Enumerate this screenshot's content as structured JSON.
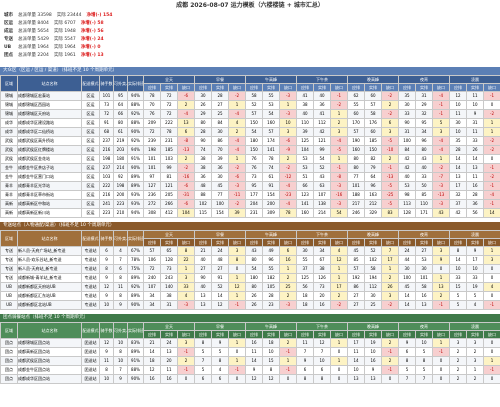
{
  "header": {
    "title": "成都 2026-08-07 运力模板（六楼楼链 + 城市汇总）"
  },
  "summary": [
    {
      "label": "城市",
      "items": [
        "总派单量 33598",
        "实际 23444",
        "净增(-) 154"
      ]
    },
    {
      "label": "区运",
      "items": [
        "总派单量 8404",
        "实际 6707",
        "净增(-) 58"
      ]
    },
    {
      "label": "成运",
      "items": [
        "总派单量 5654",
        "实际 1948",
        "净增(-) 56"
      ]
    },
    {
      "label": "专送",
      "items": [
        "总派单量 5429",
        "实际 5547",
        "净增(-) 24"
      ]
    },
    {
      "label": "UB",
      "items": [
        "总派单量 1964",
        "实际 1964",
        "净增(-) 0"
      ]
    },
    {
      "label": "团点",
      "items": [
        "总派单量 2204",
        "实际 1961",
        "净增(-) 13"
      ]
    }
  ],
  "columns": {
    "fixed": [
      "区域",
      "站点名称",
      "配送模式",
      "骑手数",
      "可外卖人数",
      "实际排班率"
    ],
    "groups": [
      "全天",
      "早餐",
      "午高峰",
      "下午茶",
      "晚高峰",
      "夜宵",
      "凌晨"
    ],
    "sub": [
      "应排",
      "实排",
      "缺口"
    ]
  },
  "sections": [
    {
      "title": "大众区（区运 / 区运 / 渠道）（排班不足 10 个周期单元）",
      "rows": [
        [
          "锦城",
          "成都锦城区宏泰站",
          "区运",
          101,
          95,
          "94%",
          78,
          72,
          -6,
          30,
          28,
          -2,
          58,
          55,
          -3,
          41,
          40,
          -1,
          62,
          60,
          -2,
          35,
          31,
          -4,
          12,
          11,
          -1
        ],
        [
          "锦城",
          "成都锦城区西园站",
          "区运",
          73,
          64,
          "88%",
          70,
          72,
          2,
          26,
          27,
          1,
          52,
          53,
          1,
          38,
          36,
          -2,
          55,
          57,
          2,
          30,
          29,
          -1,
          10,
          10,
          0
        ],
        [
          "锦城",
          "成都锦城区天府站",
          "区运",
          72,
          66,
          "92%",
          76,
          72,
          -4,
          29,
          25,
          -4,
          57,
          54,
          -3,
          40,
          41,
          1,
          60,
          58,
          -2,
          33,
          32,
          -1,
          11,
          9,
          -2
        ],
        [
          "成华",
          "成都成华区建设路站",
          "区运",
          91,
          80,
          "88%",
          209,
          222,
          13,
          80,
          84,
          4,
          150,
          160,
          10,
          110,
          112,
          2,
          170,
          176,
          6,
          90,
          95,
          5,
          30,
          31,
          1
        ],
        [
          "成华",
          "成都成华区二仙桥站",
          "区运",
          68,
          61,
          "90%",
          72,
          78,
          6,
          28,
          30,
          2,
          54,
          57,
          3,
          39,
          42,
          3,
          57,
          60,
          3,
          31,
          34,
          3,
          10,
          11,
          1
        ],
        [
          "武侯",
          "成都武侯区高升桥站",
          "区运",
          237,
          219,
          "92%",
          239,
          231,
          -8,
          90,
          86,
          -4,
          180,
          174,
          -6,
          125,
          121,
          -4,
          190,
          185,
          -5,
          100,
          96,
          -4,
          35,
          33,
          -2
        ],
        [
          "武侯",
          "成都武侯区红牌楼站",
          "区运",
          216,
          203,
          "94%",
          198,
          185,
          -13,
          74,
          70,
          -4,
          150,
          141,
          -9,
          104,
          99,
          -5,
          160,
          150,
          -10,
          84,
          80,
          -4,
          28,
          26,
          -2
        ],
        [
          "武侯",
          "成都武侯区金花站",
          "区运",
          198,
          180,
          "91%",
          101,
          103,
          2,
          38,
          39,
          1,
          76,
          78,
          2,
          53,
          54,
          1,
          80,
          82,
          2,
          42,
          43,
          1,
          14,
          14,
          0
        ],
        [
          "金牛",
          "成都金牛区茶店子站",
          "区运",
          237,
          214,
          "90%",
          101,
          99,
          -2,
          38,
          36,
          -2,
          76,
          74,
          -2,
          53,
          52,
          -1,
          80,
          79,
          -1,
          42,
          40,
          -2,
          14,
          13,
          -1
        ],
        [
          "金牛",
          "成都金牛区营门口站",
          "区运",
          103,
          92,
          "89%",
          97,
          81,
          -16,
          36,
          30,
          -6,
          73,
          61,
          -12,
          51,
          43,
          -8,
          77,
          64,
          -13,
          40,
          33,
          -7,
          13,
          11,
          -2
        ],
        [
          "青羊",
          "成都青羊区光华站",
          "区运",
          222,
          198,
          "89%",
          127,
          121,
          -6,
          48,
          45,
          -3,
          95,
          91,
          -4,
          66,
          63,
          -3,
          101,
          96,
          -5,
          53,
          50,
          -3,
          17,
          16,
          -1
        ],
        [
          "青羊",
          "成都青羊区草市街站",
          "区运",
          216,
          200,
          "93%",
          236,
          205,
          -31,
          88,
          77,
          -11,
          177,
          154,
          -23,
          123,
          107,
          -16,
          188,
          163,
          -25,
          98,
          85,
          -13,
          32,
          28,
          -4
        ],
        [
          "高新",
          "成都高新区中和站",
          "区运",
          241,
          223,
          "93%",
          272,
          266,
          -6,
          102,
          100,
          -2,
          204,
          200,
          -4,
          141,
          138,
          -3,
          217,
          212,
          -5,
          113,
          110,
          -3,
          37,
          36,
          -1
        ],
        [
          "高新",
          "成都高新区新川站",
          "区运",
          223,
          210,
          "94%",
          308,
          412,
          104,
          115,
          154,
          39,
          231,
          309,
          78,
          160,
          214,
          54,
          246,
          329,
          83,
          128,
          171,
          43,
          42,
          56,
          14
        ]
      ]
    },
    {
      "title": "专送站点（人物通配/渠道）（排班不足 10 个周期单元）",
      "rows": [
        [
          "专送",
          "新人员-天府广场站_新专送",
          "专送站",
          6,
          4,
          "67%",
          57,
          65,
          8,
          21,
          24,
          3,
          43,
          49,
          6,
          30,
          34,
          4,
          45,
          52,
          7,
          24,
          27,
          3,
          8,
          9,
          1
        ],
        [
          "专送",
          "新人员-欢乐谷站_新专送",
          "专送站",
          9,
          7,
          "78%",
          106,
          128,
          22,
          40,
          48,
          8,
          80,
          96,
          16,
          55,
          67,
          12,
          85,
          102,
          17,
          44,
          53,
          9,
          14,
          17,
          3
        ],
        [
          "专送",
          "新人员-天府站_新专送",
          "专送站",
          8,
          6,
          "75%",
          72,
          73,
          1,
          27,
          27,
          0,
          54,
          55,
          1,
          37,
          38,
          1,
          57,
          58,
          1,
          30,
          30,
          0,
          10,
          10,
          0
        ],
        [
          "专送",
          "成都新城-青羊站_新专送",
          "专送站",
          9,
          8,
          "89%",
          240,
          243,
          3,
          90,
          91,
          1,
          180,
          182,
          2,
          125,
          126,
          1,
          192,
          194,
          2,
          100,
          101,
          1,
          33,
          33,
          0
        ],
        [
          "UB",
          "成都新都区天府站UB",
          "专送站",
          12,
          11,
          "92%",
          107,
          140,
          33,
          40,
          52,
          12,
          80,
          105,
          25,
          56,
          73,
          17,
          86,
          112,
          26,
          45,
          58,
          13,
          15,
          19,
          4
        ],
        [
          "UB",
          "成都新都区汇东站UB",
          "专送站",
          9,
          8,
          "89%",
          34,
          38,
          4,
          13,
          14,
          1,
          26,
          28,
          2,
          18,
          20,
          2,
          27,
          30,
          3,
          14,
          16,
          2,
          5,
          5,
          0
        ],
        [
          "UB",
          "成都新都区北站UB",
          "专送站",
          10,
          9,
          "90%",
          34,
          31,
          -3,
          13,
          12,
          -1,
          26,
          23,
          -3,
          18,
          16,
          -2,
          27,
          25,
          -2,
          14,
          13,
          -1,
          5,
          4,
          -1
        ]
      ]
    },
    {
      "title": "团点骑餐站点（排班不足 10 个周期单元）",
      "rows": [
        [
          "团点",
          "成都锦城区团点站",
          "团送站",
          12,
          10,
          "83%",
          21,
          24,
          3,
          8,
          9,
          1,
          16,
          18,
          2,
          11,
          12,
          1,
          17,
          19,
          2,
          9,
          10,
          1,
          3,
          3,
          0
        ],
        [
          "团点",
          "成都高新区团点站",
          "团送站",
          9,
          8,
          "89%",
          14,
          13,
          -1,
          5,
          5,
          0,
          11,
          10,
          -1,
          7,
          7,
          0,
          11,
          10,
          -1,
          6,
          5,
          -1,
          2,
          2,
          0
        ],
        [
          "团点",
          "成都武侯区团点站",
          "团送站",
          11,
          10,
          "91%",
          18,
          20,
          2,
          7,
          8,
          1,
          14,
          15,
          1,
          9,
          10,
          1,
          14,
          16,
          2,
          8,
          8,
          0,
          2,
          3,
          1
        ],
        [
          "团点",
          "成都金牛区团点站",
          "团送站",
          8,
          7,
          "88%",
          12,
          11,
          -1,
          5,
          4,
          -1,
          9,
          8,
          -1,
          6,
          6,
          0,
          10,
          9,
          -1,
          5,
          5,
          0,
          2,
          1,
          -1
        ],
        [
          "团点",
          "成都成华区团点站",
          "团送站",
          10,
          9,
          "90%",
          16,
          16,
          0,
          6,
          6,
          0,
          12,
          12,
          0,
          8,
          8,
          0,
          13,
          13,
          0,
          7,
          7,
          0,
          2,
          2,
          0
        ]
      ]
    }
  ]
}
